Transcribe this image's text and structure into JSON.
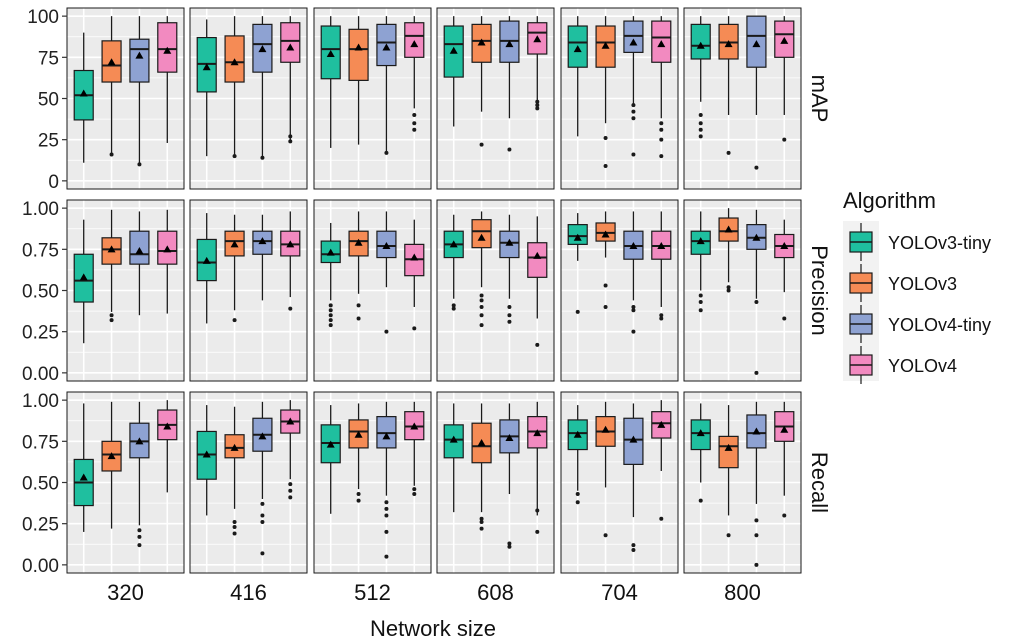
{
  "chart_data": {
    "type": "boxplot",
    "xlabel": "Network size",
    "legend_title": "Algorithm",
    "legend_position": "right",
    "grid": true,
    "facets_x": [
      "320",
      "416",
      "512",
      "608",
      "704",
      "800"
    ],
    "facets_y": [
      {
        "label": "mAP",
        "ylim": [
          0,
          100
        ],
        "ticks": [
          "0",
          "25",
          "50",
          "75",
          "100"
        ]
      },
      {
        "label": "Precision",
        "ylim": [
          0,
          1
        ],
        "ticks": [
          "0.00",
          "0.25",
          "0.50",
          "0.75",
          "1.00"
        ]
      },
      {
        "label": "Recall",
        "ylim": [
          0,
          1
        ],
        "ticks": [
          "0.00",
          "0.25",
          "0.50",
          "0.75",
          "1.00"
        ]
      }
    ],
    "series": [
      {
        "name": "YOLOv3-tiny",
        "color": "#1fbf9f"
      },
      {
        "name": "YOLOv3",
        "color": "#f58b55"
      },
      {
        "name": "YOLOv4-tiny",
        "color": "#8ea2d2"
      },
      {
        "name": "YOLOv4",
        "color": "#f28ac0"
      }
    ],
    "boxes": {
      "mAP": [
        [
          [
            11,
            37,
            52,
            67,
            90,
            53,
            []
          ],
          [
            15,
            60,
            70,
            85,
            100,
            72,
            [
              16
            ]
          ],
          [
            10,
            60,
            80,
            86,
            100,
            76,
            [
              10
            ]
          ],
          [
            23,
            66,
            80,
            96,
            100,
            79,
            []
          ]
        ],
        [
          [
            15,
            54,
            71,
            87,
            98,
            69,
            []
          ],
          [
            15,
            60,
            72,
            88,
            100,
            72,
            [
              15
            ]
          ],
          [
            14,
            66,
            83,
            95,
            100,
            80,
            [
              14
            ]
          ],
          [
            23,
            72,
            85,
            96,
            100,
            81,
            [
              24,
              27
            ]
          ]
        ],
        [
          [
            20,
            62,
            80,
            94,
            100,
            77,
            []
          ],
          [
            22,
            61,
            80,
            92,
            100,
            81,
            []
          ],
          [
            17,
            70,
            84,
            95,
            100,
            81,
            [
              17
            ]
          ],
          [
            44,
            75,
            88,
            96,
            100,
            83,
            [
              40,
              35,
              31
            ]
          ]
        ],
        [
          [
            33,
            63,
            83,
            94,
            100,
            79,
            []
          ],
          [
            42,
            72,
            85,
            95,
            100,
            84,
            [
              22
            ]
          ],
          [
            38,
            72,
            85,
            97,
            100,
            83,
            [
              19
            ]
          ],
          [
            49,
            77,
            90,
            96,
            100,
            86,
            [
              48,
              46,
              44
            ]
          ]
        ],
        [
          [
            27,
            69,
            84,
            94,
            100,
            80,
            []
          ],
          [
            35,
            69,
            84,
            94,
            100,
            82,
            [
              26,
              9
            ]
          ],
          [
            46,
            78,
            88,
            97,
            100,
            84,
            [
              46,
              42,
              38,
              16
            ]
          ],
          [
            38,
            72,
            87,
            97,
            100,
            83,
            [
              35,
              31,
              25,
              15
            ]
          ]
        ],
        [
          [
            48,
            74,
            82,
            95,
            100,
            82,
            [
              40,
              35,
              31,
              27
            ]
          ],
          [
            40,
            74,
            84,
            95,
            100,
            83,
            [
              17
            ]
          ],
          [
            40,
            69,
            88,
            100,
            100,
            83,
            [
              8
            ]
          ],
          [
            40,
            75,
            89,
            97,
            100,
            85,
            [
              25
            ]
          ]
        ]
      ],
      "Precision": [
        [
          [
            0.18,
            0.43,
            0.56,
            0.72,
            0.93,
            0.58,
            []
          ],
          [
            0.37,
            0.66,
            0.75,
            0.82,
            0.99,
            0.75,
            [
              0.35,
              0.32
            ]
          ],
          [
            0.35,
            0.66,
            0.72,
            0.86,
            0.98,
            0.74,
            []
          ],
          [
            0.36,
            0.66,
            0.74,
            0.86,
            0.99,
            0.75,
            []
          ]
        ],
        [
          [
            0.3,
            0.56,
            0.67,
            0.81,
            0.97,
            0.68,
            []
          ],
          [
            0.38,
            0.71,
            0.8,
            0.86,
            0.96,
            0.78,
            [
              0.32
            ]
          ],
          [
            0.44,
            0.72,
            0.8,
            0.86,
            0.96,
            0.8,
            []
          ],
          [
            0.46,
            0.71,
            0.78,
            0.86,
            0.98,
            0.78,
            [
              0.39
            ]
          ]
        ],
        [
          [
            0.44,
            0.67,
            0.72,
            0.8,
            0.91,
            0.73,
            [
              0.41,
              0.38,
              0.35,
              0.32,
              0.29
            ]
          ],
          [
            0.48,
            0.71,
            0.8,
            0.86,
            0.98,
            0.79,
            [
              0.41,
              0.33
            ]
          ],
          [
            0.52,
            0.7,
            0.77,
            0.86,
            0.98,
            0.77,
            [
              0.25
            ]
          ],
          [
            0.4,
            0.59,
            0.69,
            0.78,
            0.93,
            0.7,
            [
              0.27
            ]
          ]
        ],
        [
          [
            0.45,
            0.7,
            0.78,
            0.86,
            0.96,
            0.78,
            [
              0.41,
              0.39
            ]
          ],
          [
            0.52,
            0.76,
            0.86,
            0.93,
            0.98,
            0.82,
            [
              0.47,
              0.44,
              0.4,
              0.35,
              0.29
            ]
          ],
          [
            0.45,
            0.7,
            0.79,
            0.86,
            0.96,
            0.79,
            [
              0.4,
              0.35,
              0.31
            ]
          ],
          [
            0.33,
            0.58,
            0.7,
            0.79,
            0.95,
            0.71,
            [
              0.17
            ]
          ]
        ],
        [
          [
            0.68,
            0.78,
            0.83,
            0.9,
            0.97,
            0.82,
            [
              0.37
            ]
          ],
          [
            0.7,
            0.8,
            0.85,
            0.91,
            0.98,
            0.84,
            [
              0.53,
              0.4
            ]
          ],
          [
            0.44,
            0.69,
            0.77,
            0.86,
            0.98,
            0.77,
            [
              0.4,
              0.38,
              0.25
            ]
          ],
          [
            0.4,
            0.69,
            0.77,
            0.86,
            0.98,
            0.77,
            [
              0.35,
              0.33
            ]
          ]
        ],
        [
          [
            0.5,
            0.72,
            0.8,
            0.86,
            0.98,
            0.8,
            [
              0.47,
              0.43,
              0.38
            ]
          ],
          [
            0.55,
            0.8,
            0.86,
            0.94,
            1.0,
            0.87,
            [
              0.52,
              0.5
            ]
          ],
          [
            0.45,
            0.75,
            0.82,
            0.9,
            0.99,
            0.82,
            [
              0.43,
              0.0
            ]
          ],
          [
            0.49,
            0.7,
            0.77,
            0.84,
            0.93,
            0.77,
            [
              0.33
            ]
          ]
        ]
      ],
      "Recall": [
        [
          [
            0.2,
            0.36,
            0.5,
            0.64,
            0.98,
            0.53,
            []
          ],
          [
            0.22,
            0.57,
            0.67,
            0.75,
            0.99,
            0.66,
            []
          ],
          [
            0.24,
            0.65,
            0.75,
            0.86,
            0.99,
            0.75,
            [
              0.21,
              0.17,
              0.12
            ]
          ],
          [
            0.44,
            0.76,
            0.85,
            0.94,
            1.0,
            0.84,
            []
          ]
        ],
        [
          [
            0.3,
            0.52,
            0.67,
            0.81,
            0.97,
            0.67,
            []
          ],
          [
            0.34,
            0.65,
            0.71,
            0.79,
            0.96,
            0.71,
            [
              0.26,
              0.23,
              0.19
            ]
          ],
          [
            0.4,
            0.69,
            0.79,
            0.89,
            0.99,
            0.78,
            [
              0.37,
              0.3,
              0.26,
              0.07
            ]
          ],
          [
            0.52,
            0.8,
            0.87,
            0.94,
            1.0,
            0.87,
            [
              0.49,
              0.45,
              0.41
            ]
          ]
        ],
        [
          [
            0.31,
            0.62,
            0.74,
            0.85,
            0.97,
            0.73,
            []
          ],
          [
            0.46,
            0.71,
            0.81,
            0.88,
            0.98,
            0.79,
            [
              0.43,
              0.39
            ]
          ],
          [
            0.42,
            0.71,
            0.8,
            0.9,
            0.99,
            0.78,
            [
              0.38,
              0.34,
              0.3,
              0.2,
              0.05
            ]
          ],
          [
            0.48,
            0.76,
            0.84,
            0.93,
            0.99,
            0.84,
            [
              0.46,
              0.43
            ]
          ]
        ],
        [
          [
            0.32,
            0.65,
            0.76,
            0.85,
            0.98,
            0.76,
            []
          ],
          [
            0.32,
            0.62,
            0.72,
            0.86,
            0.98,
            0.74,
            [
              0.28,
              0.26,
              0.22
            ]
          ],
          [
            0.43,
            0.68,
            0.78,
            0.88,
            0.98,
            0.77,
            [
              0.13,
              0.11
            ]
          ],
          [
            0.3,
            0.71,
            0.81,
            0.9,
            0.99,
            0.8,
            [
              0.33,
              0.2
            ]
          ]
        ],
        [
          [
            0.45,
            0.7,
            0.8,
            0.88,
            0.97,
            0.79,
            [
              0.43,
              0.38
            ]
          ],
          [
            0.47,
            0.72,
            0.81,
            0.9,
            0.99,
            0.82,
            [
              0.18
            ]
          ],
          [
            0.29,
            0.61,
            0.76,
            0.89,
            0.98,
            0.76,
            [
              0.12,
              0.09
            ]
          ],
          [
            0.57,
            0.77,
            0.86,
            0.93,
            1.0,
            0.85,
            [
              0.28
            ]
          ]
        ],
        [
          [
            0.5,
            0.7,
            0.8,
            0.88,
            0.98,
            0.8,
            [
              0.39
            ]
          ],
          [
            0.3,
            0.59,
            0.72,
            0.78,
            0.97,
            0.71,
            [
              0.18
            ]
          ],
          [
            0.37,
            0.71,
            0.8,
            0.91,
            0.99,
            0.81,
            [
              0.27,
              0.18,
              0.0
            ]
          ],
          [
            0.42,
            0.75,
            0.84,
            0.93,
            0.99,
            0.82,
            [
              0.3
            ]
          ]
        ]
      ]
    }
  }
}
